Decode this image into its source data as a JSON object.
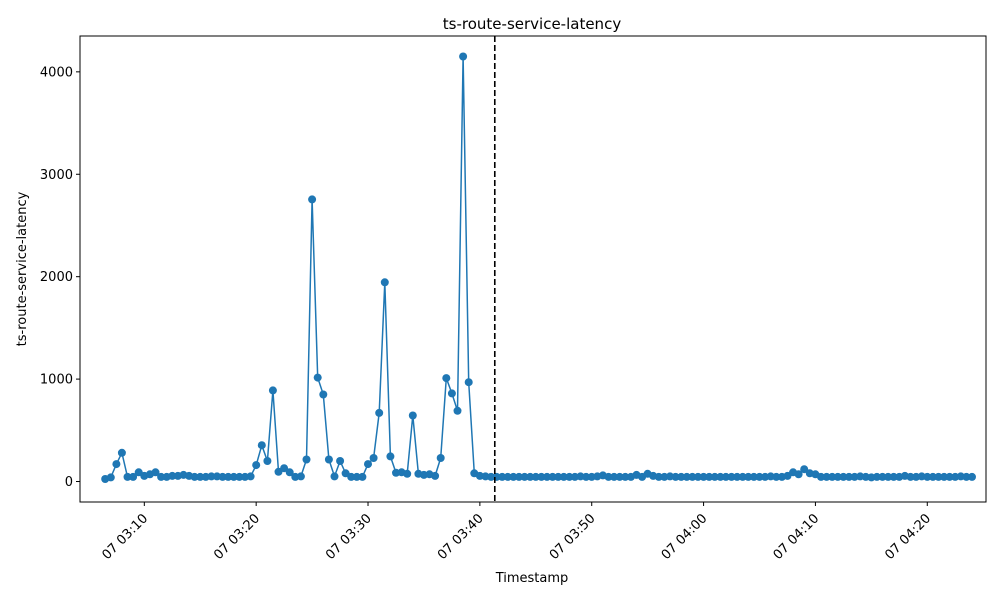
{
  "chart_data": {
    "type": "line",
    "title": "ts-route-service-latency",
    "xlabel": "Timestamp",
    "ylabel": "ts-route-service-latency",
    "x_start": "07 03:06:30",
    "x_step_seconds": 30,
    "xlim": [
      "07 03:04:15",
      "07 04:25:15"
    ],
    "ylim": [
      -200,
      4350
    ],
    "y_ticks": [
      0,
      1000,
      2000,
      3000,
      4000
    ],
    "x_ticks": [
      "07 03:10",
      "07 03:20",
      "07 03:30",
      "07 03:40",
      "07 03:50",
      "07 04:00",
      "07 04:10",
      "07 04:20"
    ],
    "vline": "07 03:41:20",
    "line_color": "#1f77b4",
    "grid": false,
    "series": [
      {
        "values": [
          25,
          40,
          170,
          280,
          45,
          45,
          90,
          55,
          70,
          90,
          45,
          45,
          55,
          55,
          65,
          55,
          45,
          45,
          45,
          50,
          50,
          45,
          45,
          45,
          45,
          45,
          50,
          160,
          355,
          200,
          890,
          95,
          130,
          90,
          45,
          50,
          215,
          2755,
          1015,
          850,
          215,
          50,
          200,
          80,
          45,
          45,
          45,
          170,
          230,
          670,
          1945,
          245,
          85,
          90,
          75,
          645,
          75,
          65,
          70,
          55,
          230,
          1010,
          860,
          690,
          4150,
          970,
          80,
          55,
          50,
          45,
          45,
          45,
          45,
          45,
          45,
          45,
          45,
          45,
          45,
          45,
          45,
          45,
          45,
          45,
          45,
          50,
          45,
          45,
          50,
          60,
          45,
          45,
          45,
          45,
          45,
          65,
          45,
          75,
          55,
          45,
          45,
          50,
          45,
          45,
          45,
          45,
          45,
          45,
          45,
          45,
          45,
          45,
          45,
          45,
          45,
          45,
          45,
          45,
          45,
          50,
          45,
          45,
          55,
          90,
          70,
          120,
          80,
          70,
          45,
          45,
          45,
          45,
          45,
          45,
          45,
          50,
          45,
          40,
          45,
          45,
          45,
          45,
          45,
          55,
          45,
          45,
          50,
          45,
          45,
          45,
          45,
          45,
          45,
          50,
          45,
          45
        ]
      }
    ]
  }
}
